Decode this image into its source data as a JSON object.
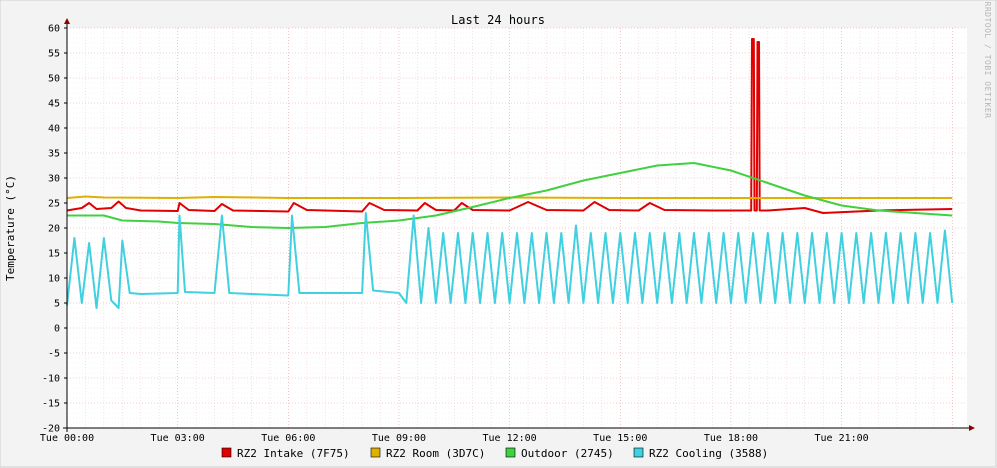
{
  "chart_data": {
    "type": "line",
    "title": "Last 24 hours",
    "ylabel": "Temperature (°C)",
    "watermark": "RRDTOOL / TOBI OETIKER",
    "ylim": [
      -20,
      60
    ],
    "y_ticks": [
      -20,
      -15,
      -10,
      -5,
      0,
      5,
      10,
      15,
      20,
      25,
      30,
      35,
      40,
      45,
      50,
      55,
      60
    ],
    "xlim_hours": [
      0,
      24.4
    ],
    "x_ticks": [
      {
        "hour": 0,
        "label": "Tue 00:00"
      },
      {
        "hour": 3,
        "label": "Tue 03:00"
      },
      {
        "hour": 6,
        "label": "Tue 06:00"
      },
      {
        "hour": 9,
        "label": "Tue 09:00"
      },
      {
        "hour": 12,
        "label": "Tue 12:00"
      },
      {
        "hour": 15,
        "label": "Tue 15:00"
      },
      {
        "hour": 18,
        "label": "Tue 18:00"
      },
      {
        "hour": 21,
        "label": "Tue 21:00"
      }
    ],
    "grid": true,
    "legend_position": "bottom",
    "series": [
      {
        "name": "RZ2 Intake (7F75)",
        "color": "#e00000",
        "points": [
          [
            0,
            23.5
          ],
          [
            0.4,
            24
          ],
          [
            0.6,
            25
          ],
          [
            0.8,
            23.8
          ],
          [
            1.2,
            24
          ],
          [
            1.4,
            25.3
          ],
          [
            1.6,
            24
          ],
          [
            2,
            23.5
          ],
          [
            3,
            23.4
          ],
          [
            3.05,
            25
          ],
          [
            3.3,
            23.6
          ],
          [
            4,
            23.4
          ],
          [
            4.2,
            24.8
          ],
          [
            4.5,
            23.5
          ],
          [
            6,
            23.3
          ],
          [
            6.15,
            25
          ],
          [
            6.5,
            23.6
          ],
          [
            8,
            23.3
          ],
          [
            8.2,
            25
          ],
          [
            8.6,
            23.6
          ],
          [
            9.5,
            23.5
          ],
          [
            9.7,
            25
          ],
          [
            10,
            23.6
          ],
          [
            10.5,
            23.5
          ],
          [
            10.7,
            25
          ],
          [
            11,
            23.6
          ],
          [
            12,
            23.5
          ],
          [
            12.5,
            25.2
          ],
          [
            13,
            23.6
          ],
          [
            14,
            23.5
          ],
          [
            14.3,
            25.2
          ],
          [
            14.7,
            23.6
          ],
          [
            15.5,
            23.5
          ],
          [
            15.8,
            25
          ],
          [
            16.2,
            23.6
          ],
          [
            17.5,
            23.5
          ],
          [
            18.2,
            23.5
          ],
          [
            18.55,
            23.5
          ],
          [
            18.57,
            57.8
          ],
          [
            18.62,
            57.8
          ],
          [
            18.64,
            23.5
          ],
          [
            18.7,
            23.5
          ],
          [
            18.72,
            57.2
          ],
          [
            18.76,
            57.2
          ],
          [
            18.78,
            23.5
          ],
          [
            19,
            23.5
          ],
          [
            20,
            24
          ],
          [
            20.5,
            23
          ],
          [
            22,
            23.5
          ],
          [
            24,
            23.8
          ]
        ]
      },
      {
        "name": "RZ2 Room (3D7C)",
        "color": "#e0b000",
        "points": [
          [
            0,
            26
          ],
          [
            0.5,
            26.3
          ],
          [
            1,
            26.1
          ],
          [
            3,
            26
          ],
          [
            4,
            26.2
          ],
          [
            6,
            26
          ],
          [
            8,
            26
          ],
          [
            9,
            26
          ],
          [
            12,
            26.1
          ],
          [
            15,
            26
          ],
          [
            18,
            26
          ],
          [
            20,
            26
          ],
          [
            22,
            26
          ],
          [
            24,
            26
          ]
        ]
      },
      {
        "name": "Outdoor (2745)",
        "color": "#40d040",
        "points": [
          [
            0,
            22.5
          ],
          [
            1,
            22.5
          ],
          [
            1.5,
            21.5
          ],
          [
            2.5,
            21.3
          ],
          [
            3,
            21
          ],
          [
            4,
            20.8
          ],
          [
            4.5,
            20.5
          ],
          [
            5,
            20.2
          ],
          [
            6,
            20
          ],
          [
            7,
            20.2
          ],
          [
            8,
            21
          ],
          [
            9,
            21.5
          ],
          [
            10,
            22.5
          ],
          [
            11,
            24.2
          ],
          [
            12,
            26
          ],
          [
            13,
            27.5
          ],
          [
            14,
            29.5
          ],
          [
            15,
            31
          ],
          [
            16,
            32.5
          ],
          [
            17,
            33
          ],
          [
            18,
            31.5
          ],
          [
            19,
            29
          ],
          [
            20,
            26.5
          ],
          [
            21,
            24.5
          ],
          [
            22,
            23.5
          ],
          [
            23,
            23
          ],
          [
            24,
            22.5
          ]
        ]
      },
      {
        "name": "RZ2 Cooling (3588)",
        "color": "#40d0e0",
        "points": [
          [
            0,
            4.5
          ],
          [
            0.2,
            18
          ],
          [
            0.4,
            5
          ],
          [
            0.6,
            17
          ],
          [
            0.8,
            4
          ],
          [
            1,
            18
          ],
          [
            1.2,
            5.5
          ],
          [
            1.4,
            4
          ],
          [
            1.5,
            17.5
          ],
          [
            1.7,
            7
          ],
          [
            2,
            6.8
          ],
          [
            3,
            7
          ],
          [
            3.05,
            22.5
          ],
          [
            3.2,
            7.2
          ],
          [
            4,
            7
          ],
          [
            4.2,
            22.5
          ],
          [
            4.4,
            7
          ],
          [
            5,
            6.8
          ],
          [
            6,
            6.5
          ],
          [
            6.1,
            22.5
          ],
          [
            6.3,
            7
          ],
          [
            7,
            7
          ],
          [
            8,
            7
          ],
          [
            8.1,
            23
          ],
          [
            8.3,
            7.5
          ],
          [
            9,
            7
          ],
          [
            9.2,
            5
          ],
          [
            9.4,
            22.5
          ],
          [
            9.6,
            5
          ],
          [
            9.8,
            20
          ],
          [
            10,
            5
          ],
          [
            10.2,
            19
          ],
          [
            10.4,
            5
          ],
          [
            10.6,
            19
          ],
          [
            10.8,
            5
          ],
          [
            11,
            19
          ],
          [
            11.2,
            5
          ],
          [
            11.4,
            19
          ],
          [
            11.6,
            5
          ],
          [
            11.8,
            19
          ],
          [
            12,
            5
          ],
          [
            12.2,
            19
          ],
          [
            12.4,
            5
          ],
          [
            12.6,
            19
          ],
          [
            12.8,
            5
          ],
          [
            13,
            19
          ],
          [
            13.2,
            5
          ],
          [
            13.4,
            19
          ],
          [
            13.6,
            5
          ],
          [
            13.8,
            20.5
          ],
          [
            14,
            5
          ],
          [
            14.2,
            19
          ],
          [
            14.4,
            5
          ],
          [
            14.6,
            19
          ],
          [
            14.8,
            5
          ],
          [
            15,
            19
          ],
          [
            15.2,
            5
          ],
          [
            15.4,
            19
          ],
          [
            15.6,
            5
          ],
          [
            15.8,
            19
          ],
          [
            16,
            5
          ],
          [
            16.2,
            19
          ],
          [
            16.4,
            5
          ],
          [
            16.6,
            19
          ],
          [
            16.8,
            5
          ],
          [
            17,
            19
          ],
          [
            17.2,
            5
          ],
          [
            17.4,
            19
          ],
          [
            17.6,
            5
          ],
          [
            17.8,
            19
          ],
          [
            18,
            5
          ],
          [
            18.2,
            19
          ],
          [
            18.4,
            5
          ],
          [
            18.6,
            19
          ],
          [
            18.8,
            5
          ],
          [
            19,
            19
          ],
          [
            19.2,
            5
          ],
          [
            19.4,
            19
          ],
          [
            19.6,
            5
          ],
          [
            19.8,
            19
          ],
          [
            20,
            5
          ],
          [
            20.2,
            19
          ],
          [
            20.4,
            5
          ],
          [
            20.6,
            19
          ],
          [
            20.8,
            5
          ],
          [
            21,
            19
          ],
          [
            21.2,
            5
          ],
          [
            21.4,
            19
          ],
          [
            21.6,
            5
          ],
          [
            21.8,
            19
          ],
          [
            22,
            5
          ],
          [
            22.2,
            19
          ],
          [
            22.4,
            5
          ],
          [
            22.6,
            19
          ],
          [
            22.8,
            5
          ],
          [
            23,
            19
          ],
          [
            23.2,
            5
          ],
          [
            23.4,
            19
          ],
          [
            23.6,
            5
          ],
          [
            23.8,
            19.5
          ],
          [
            24,
            5
          ]
        ]
      }
    ]
  }
}
